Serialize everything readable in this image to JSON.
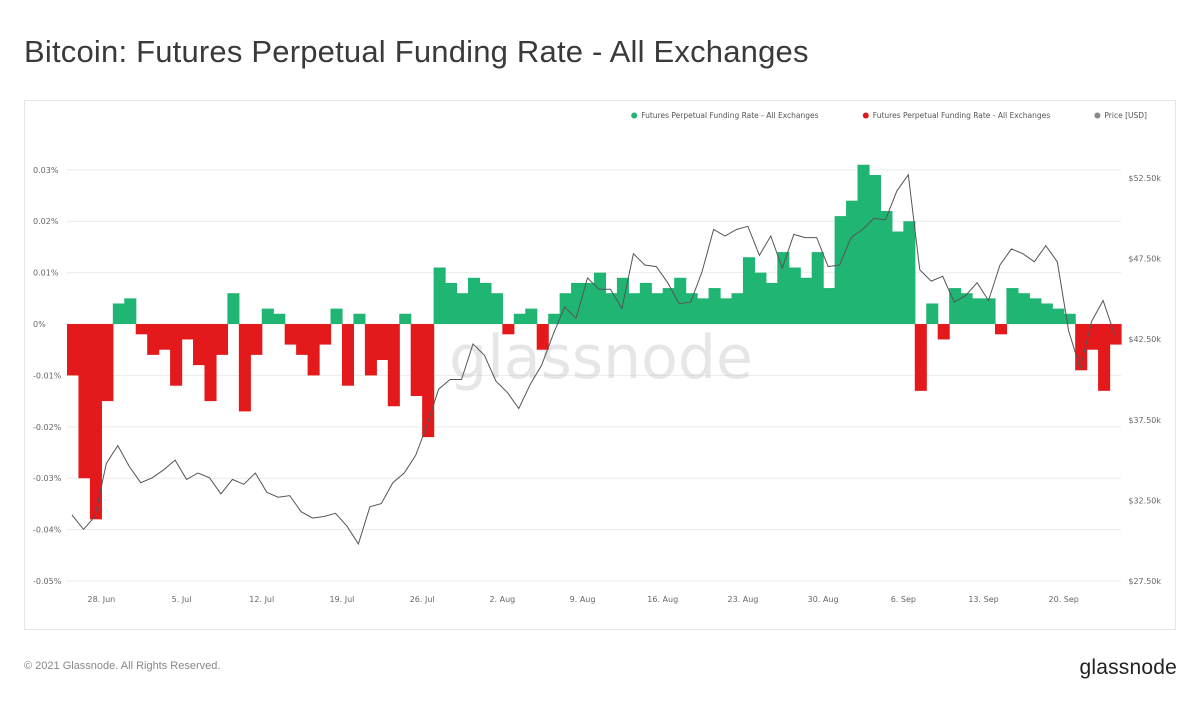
{
  "title": "Bitcoin: Futures Perpetual Funding Rate - All Exchanges",
  "footer": {
    "copyright": "© 2021 Glassnode. All Rights Reserved.",
    "logo": "glassnode"
  },
  "watermark": "glassnode",
  "colors": {
    "positive": "#21b573",
    "negative": "#e3191b",
    "price": "#555555",
    "grid": "#ebebeb"
  },
  "chart_data": {
    "type": "area",
    "legend_position": "top-right",
    "grid": true,
    "legend": [
      {
        "label": "Futures Perpetual Funding Rate - All Exchanges",
        "color": "#21b573"
      },
      {
        "label": "Futures Perpetual Funding Rate - All Exchanges",
        "color": "#e3191b"
      },
      {
        "label": "Price [USD]",
        "color": "#888888"
      }
    ],
    "x_ticks": [
      "28. Jun",
      "5. Jul",
      "12. Jul",
      "19. Jul",
      "26. Jul",
      "2. Aug",
      "9. Aug",
      "16. Aug",
      "23. Aug",
      "30. Aug",
      "6. Sep",
      "13. Sep",
      "20. Sep"
    ],
    "x_start": "2021-06-25",
    "x_end": "2021-09-24",
    "y_left": {
      "ticks": [
        "0.03%",
        "0.02%",
        "0.01%",
        "0%",
        "-0.01%",
        "-0.02%",
        "-0.03%",
        "-0.04%",
        "-0.05%"
      ],
      "range": [
        -0.05,
        0.0325
      ]
    },
    "y_right": {
      "ticks": [
        "$52.50k",
        "$47.50k",
        "$42.50k",
        "$37.50k",
        "$32.50k",
        "$27.50k"
      ],
      "range": [
        27500,
        53800
      ]
    },
    "funding_rate": [
      [
        "2021-06-25",
        -0.01
      ],
      [
        "2021-06-26",
        -0.03
      ],
      [
        "2021-06-27",
        -0.038
      ],
      [
        "2021-06-28",
        -0.015
      ],
      [
        "2021-06-29",
        0.004
      ],
      [
        "2021-06-30",
        0.005
      ],
      [
        "2021-07-01",
        -0.002
      ],
      [
        "2021-07-02",
        -0.006
      ],
      [
        "2021-07-03",
        -0.005
      ],
      [
        "2021-07-04",
        -0.012
      ],
      [
        "2021-07-05",
        -0.003
      ],
      [
        "2021-07-06",
        -0.008
      ],
      [
        "2021-07-07",
        -0.015
      ],
      [
        "2021-07-08",
        -0.006
      ],
      [
        "2021-07-09",
        0.006
      ],
      [
        "2021-07-10",
        -0.017
      ],
      [
        "2021-07-11",
        -0.006
      ],
      [
        "2021-07-12",
        0.003
      ],
      [
        "2021-07-13",
        0.002
      ],
      [
        "2021-07-14",
        -0.004
      ],
      [
        "2021-07-15",
        -0.006
      ],
      [
        "2021-07-16",
        -0.01
      ],
      [
        "2021-07-17",
        -0.004
      ],
      [
        "2021-07-18",
        0.003
      ],
      [
        "2021-07-19",
        -0.012
      ],
      [
        "2021-07-20",
        0.002
      ],
      [
        "2021-07-21",
        -0.01
      ],
      [
        "2021-07-22",
        -0.007
      ],
      [
        "2021-07-23",
        -0.016
      ],
      [
        "2021-07-24",
        0.002
      ],
      [
        "2021-07-25",
        -0.014
      ],
      [
        "2021-07-26",
        -0.022
      ],
      [
        "2021-07-27",
        0.011
      ],
      [
        "2021-07-28",
        0.008
      ],
      [
        "2021-07-29",
        0.006
      ],
      [
        "2021-07-30",
        0.009
      ],
      [
        "2021-07-31",
        0.008
      ],
      [
        "2021-08-01",
        0.006
      ],
      [
        "2021-08-02",
        -0.002
      ],
      [
        "2021-08-03",
        0.002
      ],
      [
        "2021-08-04",
        0.003
      ],
      [
        "2021-08-05",
        -0.005
      ],
      [
        "2021-08-06",
        0.002
      ],
      [
        "2021-08-07",
        0.006
      ],
      [
        "2021-08-08",
        0.008
      ],
      [
        "2021-08-09",
        0.008
      ],
      [
        "2021-08-10",
        0.01
      ],
      [
        "2021-08-11",
        0.006
      ],
      [
        "2021-08-12",
        0.009
      ],
      [
        "2021-08-13",
        0.006
      ],
      [
        "2021-08-14",
        0.008
      ],
      [
        "2021-08-15",
        0.006
      ],
      [
        "2021-08-16",
        0.007
      ],
      [
        "2021-08-17",
        0.009
      ],
      [
        "2021-08-18",
        0.006
      ],
      [
        "2021-08-19",
        0.005
      ],
      [
        "2021-08-20",
        0.007
      ],
      [
        "2021-08-21",
        0.005
      ],
      [
        "2021-08-22",
        0.006
      ],
      [
        "2021-08-23",
        0.013
      ],
      [
        "2021-08-24",
        0.01
      ],
      [
        "2021-08-25",
        0.008
      ],
      [
        "2021-08-26",
        0.014
      ],
      [
        "2021-08-27",
        0.011
      ],
      [
        "2021-08-28",
        0.009
      ],
      [
        "2021-08-29",
        0.014
      ],
      [
        "2021-08-30",
        0.007
      ],
      [
        "2021-08-31",
        0.021
      ],
      [
        "2021-09-01",
        0.024
      ],
      [
        "2021-09-02",
        0.031
      ],
      [
        "2021-09-03",
        0.029
      ],
      [
        "2021-09-04",
        0.022
      ],
      [
        "2021-09-05",
        0.018
      ],
      [
        "2021-09-06",
        0.02
      ],
      [
        "2021-09-07",
        -0.013
      ],
      [
        "2021-09-08",
        0.004
      ],
      [
        "2021-09-09",
        -0.003
      ],
      [
        "2021-09-10",
        0.007
      ],
      [
        "2021-09-11",
        0.006
      ],
      [
        "2021-09-12",
        0.005
      ],
      [
        "2021-09-13",
        0.005
      ],
      [
        "2021-09-14",
        -0.002
      ],
      [
        "2021-09-15",
        0.007
      ],
      [
        "2021-09-16",
        0.006
      ],
      [
        "2021-09-17",
        0.005
      ],
      [
        "2021-09-18",
        0.004
      ],
      [
        "2021-09-19",
        0.003
      ],
      [
        "2021-09-20",
        0.002
      ],
      [
        "2021-09-21",
        -0.009
      ],
      [
        "2021-09-22",
        -0.005
      ],
      [
        "2021-09-23",
        -0.013
      ],
      [
        "2021-09-24",
        -0.004
      ]
    ],
    "price_usd": [
      [
        "2021-06-25",
        31600
      ],
      [
        "2021-06-26",
        30700
      ],
      [
        "2021-06-27",
        31500
      ],
      [
        "2021-06-28",
        34800
      ],
      [
        "2021-06-29",
        35900
      ],
      [
        "2021-06-30",
        34600
      ],
      [
        "2021-07-01",
        33600
      ],
      [
        "2021-07-02",
        33900
      ],
      [
        "2021-07-03",
        34400
      ],
      [
        "2021-07-04",
        35000
      ],
      [
        "2021-07-05",
        33800
      ],
      [
        "2021-07-06",
        34200
      ],
      [
        "2021-07-07",
        33900
      ],
      [
        "2021-07-08",
        32900
      ],
      [
        "2021-07-09",
        33800
      ],
      [
        "2021-07-10",
        33500
      ],
      [
        "2021-07-11",
        34200
      ],
      [
        "2021-07-12",
        33000
      ],
      [
        "2021-07-13",
        32700
      ],
      [
        "2021-07-14",
        32800
      ],
      [
        "2021-07-15",
        31800
      ],
      [
        "2021-07-16",
        31400
      ],
      [
        "2021-07-17",
        31500
      ],
      [
        "2021-07-18",
        31700
      ],
      [
        "2021-07-19",
        30900
      ],
      [
        "2021-07-20",
        29800
      ],
      [
        "2021-07-21",
        32100
      ],
      [
        "2021-07-22",
        32300
      ],
      [
        "2021-07-23",
        33600
      ],
      [
        "2021-07-24",
        34200
      ],
      [
        "2021-07-25",
        35300
      ],
      [
        "2021-07-26",
        37200
      ],
      [
        "2021-07-27",
        39400
      ],
      [
        "2021-07-28",
        40000
      ],
      [
        "2021-07-29",
        40000
      ],
      [
        "2021-07-30",
        42200
      ],
      [
        "2021-07-31",
        41500
      ],
      [
        "2021-08-01",
        39900
      ],
      [
        "2021-08-02",
        39200
      ],
      [
        "2021-08-03",
        38200
      ],
      [
        "2021-08-04",
        39700
      ],
      [
        "2021-08-05",
        40900
      ],
      [
        "2021-08-06",
        42800
      ],
      [
        "2021-08-07",
        44500
      ],
      [
        "2021-08-08",
        43800
      ],
      [
        "2021-08-09",
        46300
      ],
      [
        "2021-08-10",
        45600
      ],
      [
        "2021-08-11",
        45600
      ],
      [
        "2021-08-12",
        44400
      ],
      [
        "2021-08-13",
        47800
      ],
      [
        "2021-08-14",
        47100
      ],
      [
        "2021-08-15",
        47000
      ],
      [
        "2021-08-16",
        46000
      ],
      [
        "2021-08-17",
        44700
      ],
      [
        "2021-08-18",
        44800
      ],
      [
        "2021-08-19",
        46700
      ],
      [
        "2021-08-20",
        49300
      ],
      [
        "2021-08-21",
        48900
      ],
      [
        "2021-08-22",
        49300
      ],
      [
        "2021-08-23",
        49500
      ],
      [
        "2021-08-24",
        47700
      ],
      [
        "2021-08-25",
        48900
      ],
      [
        "2021-08-26",
        46900
      ],
      [
        "2021-08-27",
        49000
      ],
      [
        "2021-08-28",
        48800
      ],
      [
        "2021-08-29",
        48800
      ],
      [
        "2021-08-30",
        47000
      ],
      [
        "2021-08-31",
        47100
      ],
      [
        "2021-09-01",
        48800
      ],
      [
        "2021-09-02",
        49300
      ],
      [
        "2021-09-03",
        50000
      ],
      [
        "2021-09-04",
        49900
      ],
      [
        "2021-09-05",
        51700
      ],
      [
        "2021-09-06",
        52700
      ],
      [
        "2021-09-07",
        46800
      ],
      [
        "2021-09-08",
        46100
      ],
      [
        "2021-09-09",
        46400
      ],
      [
        "2021-09-10",
        44800
      ],
      [
        "2021-09-11",
        45200
      ],
      [
        "2021-09-12",
        46000
      ],
      [
        "2021-09-13",
        44900
      ],
      [
        "2021-09-14",
        47100
      ],
      [
        "2021-09-15",
        48100
      ],
      [
        "2021-09-16",
        47800
      ],
      [
        "2021-09-17",
        47300
      ],
      [
        "2021-09-18",
        48300
      ],
      [
        "2021-09-19",
        47300
      ],
      [
        "2021-09-20",
        43000
      ],
      [
        "2021-09-21",
        40700
      ],
      [
        "2021-09-22",
        43600
      ],
      [
        "2021-09-23",
        44900
      ],
      [
        "2021-09-24",
        42800
      ]
    ]
  }
}
